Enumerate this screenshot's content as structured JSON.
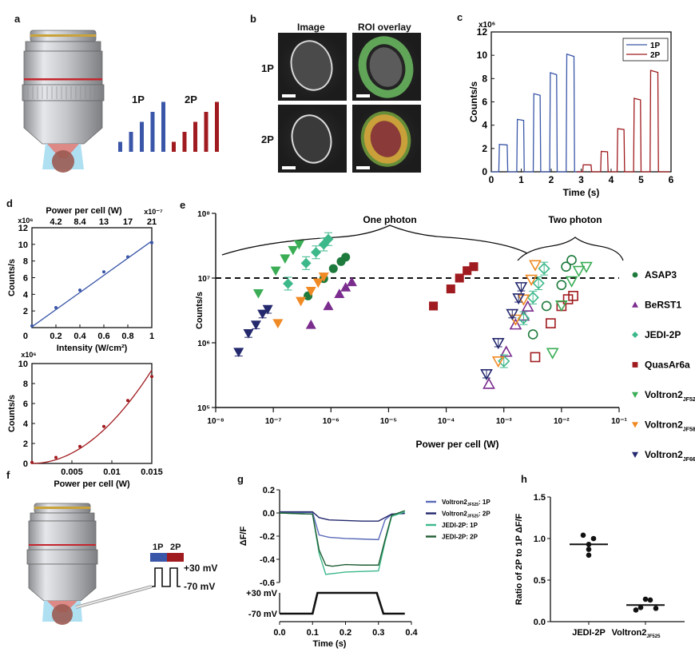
{
  "figure": {
    "panel_labels": [
      "a",
      "b",
      "c",
      "d",
      "e",
      "f",
      "g",
      "h"
    ]
  },
  "panel_a": {
    "label": "a",
    "bar_labels": {
      "one_photon": "1P",
      "two_photon": "2P"
    },
    "colors": {
      "one_photon": "#3a56a8",
      "two_photon": "#a01b1f"
    },
    "bars_1p": [
      1,
      2,
      3,
      4,
      5
    ],
    "bars_2p": [
      1,
      2,
      3,
      4,
      5
    ]
  },
  "panel_b": {
    "label": "b",
    "col_headers": [
      "Image",
      "ROI overlay"
    ],
    "row_headers": [
      "1P",
      "2P"
    ]
  },
  "panel_f": {
    "label": "f",
    "bar_labels": {
      "one_photon": "1P",
      "two_photon": "2P"
    },
    "voltages": {
      "high": "+30 mV",
      "low": "-70 mV"
    }
  },
  "chart_data": [
    {
      "id": "c",
      "type": "line",
      "title": "",
      "xlabel": "Time (s)",
      "ylabel": "Counts/s",
      "y_multiplier": "x10⁶",
      "xlim": [
        0,
        6
      ],
      "ylim": [
        0,
        12
      ],
      "xticks": [
        "0",
        "1",
        "2",
        "3",
        "4",
        "5",
        "6"
      ],
      "yticks": [
        "0",
        "2",
        "4",
        "6",
        "8",
        "10",
        "12"
      ],
      "legend": {
        "position": "top-right",
        "entries": [
          "1P",
          "2P"
        ]
      },
      "series": [
        {
          "name": "1P",
          "color": "#3a56a8",
          "pulses": [
            {
              "start": 0.25,
              "end": 0.55,
              "level": 2.35
            },
            {
              "start": 0.85,
              "end": 1.1,
              "level": 4.5
            },
            {
              "start": 1.4,
              "end": 1.65,
              "level": 6.7
            },
            {
              "start": 1.95,
              "end": 2.2,
              "level": 8.5
            },
            {
              "start": 2.5,
              "end": 2.78,
              "level": 10.1
            }
          ]
        },
        {
          "name": "2P",
          "color": "#a01b1f",
          "pulses": [
            {
              "start": 3.05,
              "end": 3.35,
              "level": 0.6
            },
            {
              "start": 3.65,
              "end": 3.9,
              "level": 1.75
            },
            {
              "start": 4.2,
              "end": 4.45,
              "level": 3.7
            },
            {
              "start": 4.75,
              "end": 5.0,
              "level": 6.3
            },
            {
              "start": 5.3,
              "end": 5.58,
              "level": 8.7
            }
          ]
        }
      ]
    },
    {
      "id": "d_top",
      "type": "scatter",
      "xlabel": "Intensity (W/cm²)",
      "ylabel": "Counts/s",
      "top_xlabel": "Power per cell (W)",
      "top_multiplier": "x10⁻⁷",
      "y_multiplier": "x10⁶",
      "xlim": [
        0,
        1
      ],
      "ylim": [
        0,
        12
      ],
      "xticks": [
        "0.2",
        "0.4",
        "0.6",
        "0.8",
        "1"
      ],
      "top_xticks": [
        "4.2",
        "8.4",
        "13",
        "17",
        "21"
      ],
      "yticks": [
        "0",
        "2",
        "4",
        "6",
        "8",
        "10",
        "12"
      ],
      "color": "#3a56a8",
      "x": [
        0,
        0.2,
        0.4,
        0.6,
        0.8,
        1.0
      ],
      "y": [
        0.2,
        2.4,
        4.5,
        6.7,
        8.5,
        10.2
      ],
      "fit": {
        "type": "linear",
        "slope": 10.3,
        "intercept": 0.1
      }
    },
    {
      "id": "d_bottom",
      "type": "scatter",
      "xlabel": "Power per cell (W)",
      "ylabel": "Counts/s",
      "y_multiplier": "x10⁶",
      "xlim": [
        0,
        0.015
      ],
      "ylim": [
        0,
        10
      ],
      "xticks": [
        "0.005",
        "0.01",
        "0.015"
      ],
      "yticks": [
        "0",
        "2",
        "4",
        "6",
        "8",
        "10"
      ],
      "color": "#a01b1f",
      "x": [
        0,
        0.003,
        0.006,
        0.009,
        0.012,
        0.015
      ],
      "y": [
        0.1,
        0.6,
        1.7,
        3.7,
        6.3,
        8.7
      ],
      "fit": {
        "type": "quadratic",
        "coef": 41500
      }
    },
    {
      "id": "e",
      "type": "scatter",
      "xlabel": "Power per cell (W)",
      "ylabel": "Counts/s",
      "xscale": "log",
      "yscale": "log",
      "xlim": [
        1e-08,
        0.1
      ],
      "ylim": [
        100000.0,
        100000000.0
      ],
      "xticks": [
        "10⁻⁸",
        "10⁻⁷",
        "10⁻⁶",
        "10⁻⁵",
        "10⁻⁴",
        "10⁻³",
        "10⁻²",
        "10⁻¹"
      ],
      "yticks": [
        "10⁵",
        "10⁶",
        "10⁷",
        "10⁸"
      ],
      "threshold_line": 10000000.0,
      "annotations": [
        "One photon",
        "Two photon"
      ],
      "legend": {
        "position": "right",
        "entries": [
          {
            "name": "ASAP3",
            "sub": "",
            "marker": "circle",
            "color": "#1e7a3c"
          },
          {
            "name": "BeRST1",
            "sub": "",
            "marker": "triangle-up",
            "color": "#7b2d8e"
          },
          {
            "name": "JEDI-2P",
            "sub": "",
            "marker": "diamond",
            "color": "#3cb88a"
          },
          {
            "name": "QuasAr6a",
            "sub": "",
            "marker": "square",
            "color": "#a01b1f"
          },
          {
            "name": "Voltron2",
            "sub": "JF525",
            "marker": "triangle-down",
            "color": "#3aad55"
          },
          {
            "name": "Voltron2",
            "sub": "JF585",
            "marker": "triangle-down",
            "color": "#f08a24"
          },
          {
            "name": "Voltron2",
            "sub": "JF669",
            "marker": "triangle-down",
            "color": "#24296e"
          }
        ]
      },
      "series": [
        {
          "name": "ASAP3 1P",
          "mode": "1P",
          "marker": "circle",
          "color": "#1e7a3c",
          "filled": true,
          "x": [
            4e-07,
            7.5e-07,
            1.1e-06,
            1.5e-06,
            1.8e-06
          ],
          "y": [
            5300000.0,
            9800000.0,
            14000000.0,
            18000000.0,
            21000000.0
          ]
        },
        {
          "name": "BeRST1 1P",
          "mode": "1P",
          "marker": "triangle-up",
          "color": "#7b2d8e",
          "filled": true,
          "x": [
            4.5e-07,
            9e-07,
            1.4e-06,
            1.8e-06,
            2.3e-06
          ],
          "y": [
            1900000.0,
            3700000.0,
            5700000.0,
            7200000.0,
            8700000.0
          ]
        },
        {
          "name": "JEDI-2P 1P",
          "mode": "1P",
          "marker": "diamond",
          "color": "#3cb88a",
          "filled": true,
          "x": [
            1.8e-07,
            3.7e-07,
            5.5e-07,
            7.5e-07,
            9e-07
          ],
          "y": [
            8200000.0,
            17000000.0,
            25000000.0,
            33000000.0,
            40000000.0
          ]
        },
        {
          "name": "QuasAr6a 1P",
          "mode": "1P",
          "marker": "square",
          "color": "#a01b1f",
          "filled": true,
          "x": [
            6e-05,
            0.00012,
            0.00017,
            0.00023,
            0.0003
          ],
          "y": [
            3700000.0,
            6800000.0,
            10000000.0,
            13000000.0,
            15000000.0
          ]
        },
        {
          "name": "Voltron2 JF525 1P",
          "mode": "1P",
          "marker": "triangle-down",
          "color": "#3aad55",
          "filled": true,
          "x": [
            5.5e-08,
            1.1e-07,
            1.6e-07,
            2.2e-07,
            2.8e-07
          ],
          "y": [
            5800000.0,
            13000000.0,
            20000000.0,
            27000000.0,
            33000000.0
          ]
        },
        {
          "name": "Voltron2 JF585 1P",
          "mode": "1P",
          "marker": "triangle-down",
          "color": "#f08a24",
          "filled": true,
          "x": [
            1.2e-07,
            3e-07,
            4.5e-07,
            6e-07,
            7.5e-07
          ],
          "y": [
            2000000.0,
            4400000.0,
            6300000.0,
            8500000.0,
            10500000.0
          ]
        },
        {
          "name": "Voltron2 JF669 1P",
          "mode": "1P",
          "marker": "triangle-down",
          "color": "#24296e",
          "filled": true,
          "x": [
            2.5e-08,
            3.7e-08,
            5e-08,
            6.5e-08,
            8e-08
          ],
          "y": [
            720000.0,
            1400000.0,
            1900000.0,
            2800000.0,
            3300000.0
          ]
        },
        {
          "name": "ASAP3 2P",
          "mode": "2P",
          "marker": "circle",
          "color": "#1e7a3c",
          "filled": false,
          "x": [
            0.0032,
            0.0055,
            0.01,
            0.012,
            0.015
          ],
          "y": [
            1350000.0,
            3700000.0,
            7800000.0,
            15000000.0,
            19000000.0
          ]
        },
        {
          "name": "BeRST1 2P",
          "mode": "2P",
          "marker": "triangle-up",
          "color": "#7b2d8e",
          "filled": false,
          "x": [
            0.00055,
            0.0011,
            0.0016,
            0.0022,
            0.0026
          ],
          "y": [
            230000.0,
            720000.0,
            1900000.0,
            2600000.0,
            3600000.0
          ]
        },
        {
          "name": "JEDI-2P 2P",
          "mode": "2P",
          "marker": "diamond",
          "color": "#3cb88a",
          "filled": false,
          "x": [
            0.001,
            0.0022,
            0.0032,
            0.004,
            0.005
          ],
          "y": [
            520000.0,
            2400000.0,
            5000000.0,
            8300000.0,
            14000000.0
          ]
        },
        {
          "name": "QuasAr6a 2P",
          "mode": "2P",
          "marker": "square",
          "color": "#a01b1f",
          "filled": false,
          "x": [
            0.0035,
            0.0065,
            0.01,
            0.013,
            0.016
          ],
          "y": [
            600000.0,
            2000000.0,
            3700000.0,
            4700000.0,
            5300000.0
          ]
        },
        {
          "name": "Voltron2 JF525 2P",
          "mode": "2P",
          "marker": "triangle-down",
          "color": "#3aad55",
          "filled": false,
          "x": [
            0.007,
            0.01,
            0.015,
            0.02,
            0.027
          ],
          "y": [
            700000.0,
            3800000.0,
            9000000.0,
            13000000.0,
            15000000.0
          ]
        },
        {
          "name": "Voltron2 JF585 2P",
          "mode": "2P",
          "marker": "triangle-down",
          "color": "#f08a24",
          "filled": false,
          "x": [
            0.0008,
            0.0016,
            0.0022,
            0.003,
            0.0035
          ],
          "y": [
            520000.0,
            2300000.0,
            4700000.0,
            9500000.0,
            16000000.0
          ]
        },
        {
          "name": "Voltron2 JF669 2P",
          "mode": "2P",
          "marker": "triangle-down",
          "color": "#24296e",
          "filled": false,
          "x": [
            0.0005,
            0.0008,
            0.0014,
            0.0018,
            0.002
          ],
          "y": [
            330000.0,
            1000000.0,
            2800000.0,
            4900000.0,
            7300000.0
          ]
        }
      ]
    },
    {
      "id": "g",
      "type": "line",
      "xlabel": "Time (s)",
      "ylabel": "ΔF/F",
      "xlim": [
        0,
        0.4
      ],
      "ylim": [
        -0.6,
        0.2
      ],
      "xticks": [
        "0.0",
        "0.1",
        "0.2",
        "0.3",
        "0.4"
      ],
      "yticks": [
        "0.2",
        "0.0",
        "-0.2",
        "-0.4",
        "-0.6"
      ],
      "voltage_labels": [
        "+30 mV",
        "-70 mV"
      ],
      "legend": {
        "position": "top-right",
        "entries": [
          {
            "name": "Voltron2",
            "sub": "JF525",
            "suffix": ": 1P",
            "color": "#5a6ab8"
          },
          {
            "name": "Voltron2",
            "sub": "JF525",
            "suffix": ": 2P",
            "color": "#22266b"
          },
          {
            "name": "JEDI-2P: 1P",
            "sub": "",
            "suffix": "",
            "color": "#3cb88a"
          },
          {
            "name": "JEDI-2P: 2P",
            "sub": "",
            "suffix": "",
            "color": "#1f5e34"
          }
        ]
      },
      "series": [
        {
          "name": "Voltron2 JF525: 1P",
          "color": "#5a6ab8",
          "x": [
            0,
            0.1,
            0.12,
            0.15,
            0.2,
            0.25,
            0.3,
            0.32,
            0.34,
            0.38
          ],
          "y": [
            0.0,
            0.005,
            -0.19,
            -0.21,
            -0.22,
            -0.225,
            -0.23,
            -0.06,
            -0.01,
            0.0
          ]
        },
        {
          "name": "Voltron2 JF525: 2P",
          "color": "#22266b",
          "x": [
            0,
            0.1,
            0.12,
            0.15,
            0.2,
            0.25,
            0.3,
            0.32,
            0.34,
            0.38
          ],
          "y": [
            0.01,
            0.01,
            -0.04,
            -0.06,
            -0.065,
            -0.07,
            -0.07,
            -0.04,
            -0.01,
            -0.005
          ]
        },
        {
          "name": "JEDI-2P: 1P",
          "color": "#3cb88a",
          "x": [
            0,
            0.1,
            0.12,
            0.14,
            0.17,
            0.2,
            0.25,
            0.3,
            0.32,
            0.34,
            0.38
          ],
          "y": [
            0.0,
            -0.01,
            -0.35,
            -0.53,
            -0.52,
            -0.51,
            -0.505,
            -0.5,
            -0.25,
            -0.03,
            0.01
          ]
        },
        {
          "name": "JEDI-2P: 2P",
          "color": "#1f5e34",
          "x": [
            0,
            0.1,
            0.12,
            0.14,
            0.16,
            0.2,
            0.25,
            0.3,
            0.32,
            0.34,
            0.38
          ],
          "y": [
            0.0,
            -0.01,
            -0.32,
            -0.45,
            -0.46,
            -0.445,
            -0.45,
            -0.45,
            -0.23,
            -0.02,
            0.02
          ]
        }
      ],
      "voltage_trace": {
        "x": [
          0,
          0.1,
          0.115,
          0.295,
          0.315,
          0.38
        ],
        "v": [
          -70,
          -70,
          30,
          30,
          -70,
          -70
        ]
      }
    },
    {
      "id": "h",
      "type": "scatter",
      "xlabel": "",
      "ylabel": "Ratio of 2P to 1P ΔF/F",
      "ylim": [
        0,
        1.5
      ],
      "yticks": [
        "0.0",
        "0.5",
        "1.0",
        "1.5"
      ],
      "categories": [
        {
          "name": "JEDI-2P",
          "sub": "",
          "points": [
            1.04,
            1.0,
            0.93,
            0.87,
            0.8
          ],
          "mean": 0.93
        },
        {
          "name": "Voltron2",
          "sub": "JF525",
          "points": [
            0.14,
            0.17,
            0.27,
            0.26,
            0.16
          ],
          "mean": 0.2
        }
      ]
    }
  ]
}
